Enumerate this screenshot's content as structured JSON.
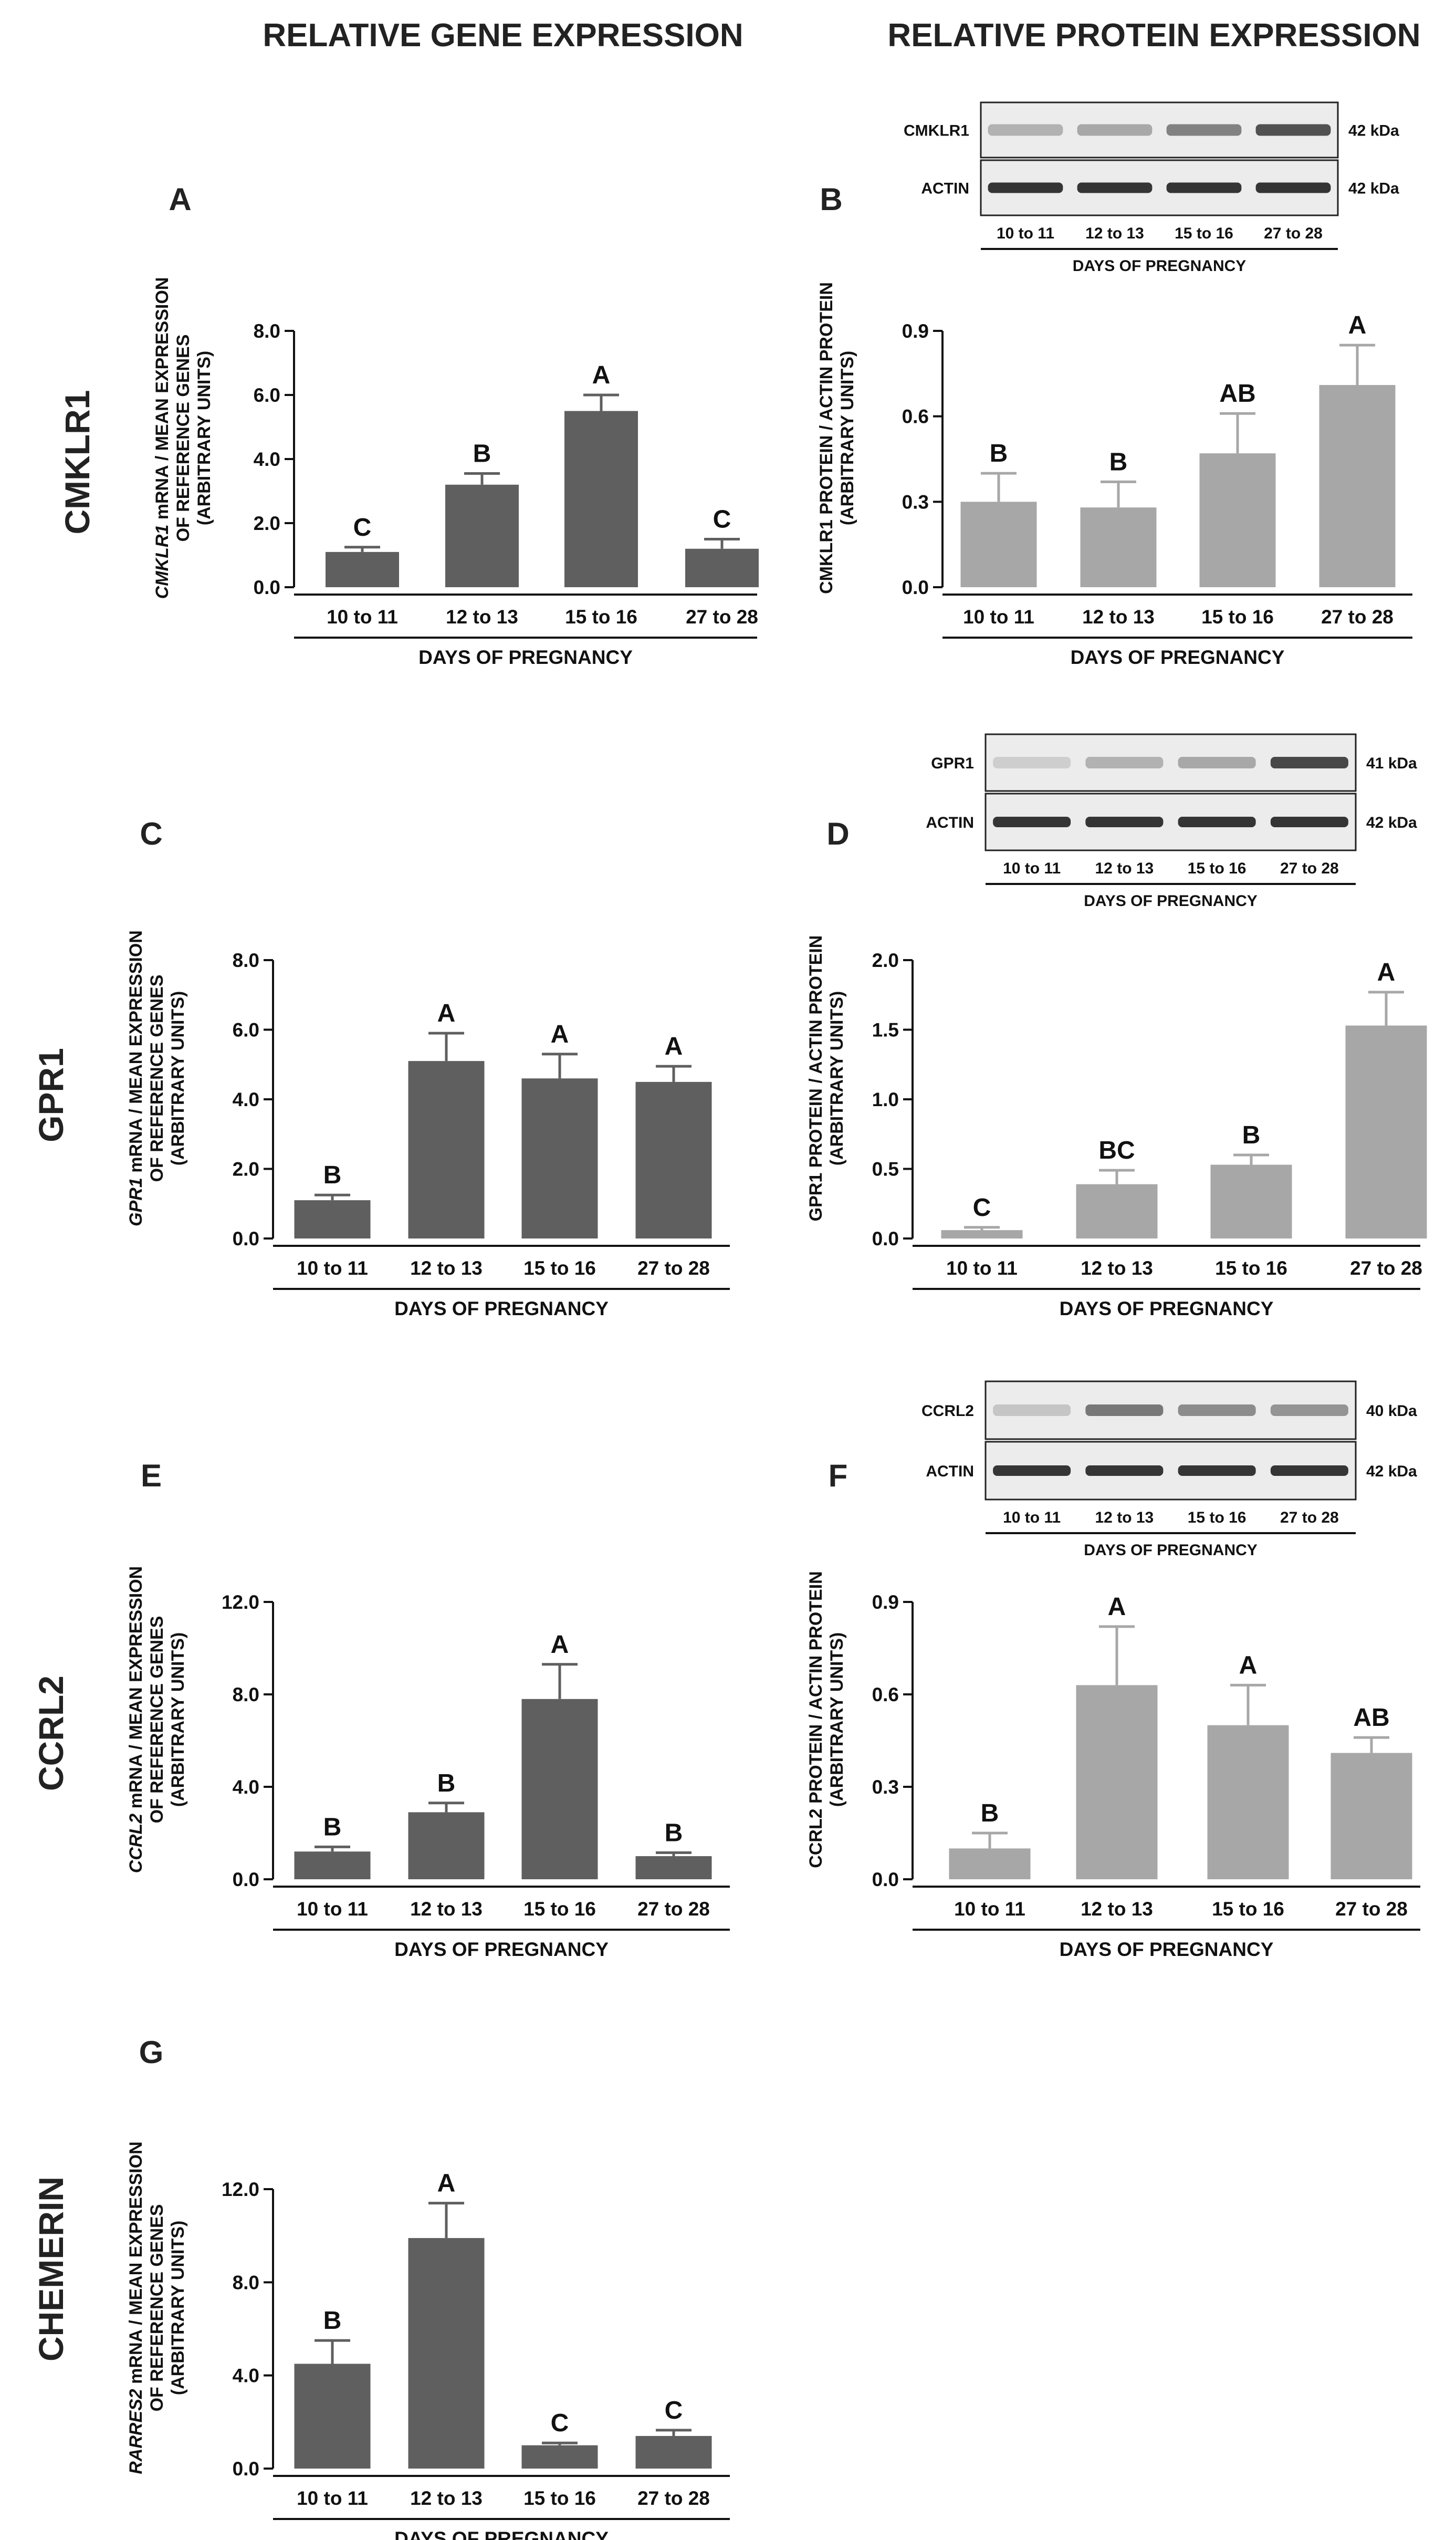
{
  "column_titles": [
    "RELATIVE GENE EXPRESSION",
    "RELATIVE PROTEIN EXPRESSION"
  ],
  "row_labels": [
    "CMKLR1",
    "GPR1",
    "CCRL2",
    "CHEMERIN"
  ],
  "colors": {
    "gene_bar": "#5f5f5f",
    "protein_bar": "#a7a7a7",
    "axis": "#111111",
    "blot_band": "#2b2b2b"
  },
  "chart_data": [
    {
      "panel": "A",
      "type": "bar",
      "measure": "gene",
      "categories": [
        "10 to 11",
        "12 to 13",
        "15 to 16",
        "27 to 28"
      ],
      "values": [
        1.1,
        3.2,
        5.5,
        1.2
      ],
      "errors": [
        0.15,
        0.35,
        0.5,
        0.3
      ],
      "significance": [
        "C",
        "B",
        "A",
        "C"
      ],
      "xlabel": "DAYS OF PREGNANCY",
      "ylabel_italic": "CMKLR1",
      "ylabel": [
        " mRNA / MEAN EXPRESSION",
        "OF REFERENCE GENES",
        "(ARBITRARY UNITS)"
      ],
      "ylim": [
        0,
        8
      ],
      "yticks": [
        "0.0",
        "2.0",
        "4.0",
        "6.0",
        "8.0"
      ]
    },
    {
      "panel": "B",
      "type": "bar",
      "measure": "protein",
      "categories": [
        "10 to 11",
        "12 to 13",
        "15 to 16",
        "27 to 28"
      ],
      "values": [
        0.3,
        0.28,
        0.47,
        0.71
      ],
      "errors": [
        0.1,
        0.09,
        0.14,
        0.14
      ],
      "significance": [
        "B",
        "B",
        "AB",
        "A"
      ],
      "xlabel": "DAYS OF PREGNANCY",
      "ylabel": [
        "CMKLR1 PROTEIN / ACTIN PROTEIN",
        "(ARBITRARY UNITS)"
      ],
      "ylim": [
        0,
        0.9
      ],
      "yticks": [
        "0.0",
        "0.3",
        "0.6",
        "0.9"
      ],
      "blot": {
        "target": "CMKLR1",
        "target_kda": "42 kDa",
        "control": "ACTIN",
        "control_kda": "42 kDa",
        "lanes": [
          "10 to 11",
          "12 to 13",
          "15 to 16",
          "27 to 28"
        ],
        "xlabel": "DAYS OF PREGNANCY",
        "target_intensity": [
          0.3,
          0.35,
          0.55,
          0.8
        ],
        "control_intensity": [
          0.95,
          0.95,
          0.95,
          0.95
        ]
      }
    },
    {
      "panel": "C",
      "type": "bar",
      "measure": "gene",
      "categories": [
        "10 to 11",
        "12 to 13",
        "15 to 16",
        "27 to 28"
      ],
      "values": [
        1.1,
        5.1,
        4.6,
        4.5
      ],
      "errors": [
        0.15,
        0.8,
        0.7,
        0.45
      ],
      "significance": [
        "B",
        "A",
        "A",
        "A"
      ],
      "xlabel": "DAYS OF PREGNANCY",
      "ylabel_italic": "GPR1",
      "ylabel": [
        " mRNA / MEAN EXPRESSION",
        "OF REFERENCE GENES",
        "(ARBITRARY UNITS)"
      ],
      "ylim": [
        0,
        8
      ],
      "yticks": [
        "0.0",
        "2.0",
        "4.0",
        "6.0",
        "8.0"
      ]
    },
    {
      "panel": "D",
      "type": "bar",
      "measure": "protein",
      "categories": [
        "10 to 11",
        "12 to 13",
        "15 to 16",
        "27 to 28"
      ],
      "values": [
        0.06,
        0.39,
        0.53,
        1.53
      ],
      "errors": [
        0.02,
        0.1,
        0.07,
        0.24
      ],
      "significance": [
        "C",
        "BC",
        "B",
        "A"
      ],
      "xlabel": "DAYS OF PREGNANCY",
      "ylabel": [
        "GPR1 PROTEIN / ACTIN PROTEIN",
        "(ARBITRARY UNITS)"
      ],
      "ylim": [
        0,
        2
      ],
      "yticks": [
        "0.0",
        "0.5",
        "1.0",
        "1.5",
        "2.0"
      ],
      "blot": {
        "target": "GPR1",
        "target_kda": "41 kDa",
        "control": "ACTIN",
        "control_kda": "42 kDa",
        "lanes": [
          "10 to 11",
          "12 to 13",
          "15 to 16",
          "27 to 28"
        ],
        "xlabel": "DAYS OF PREGNANCY",
        "target_intensity": [
          0.15,
          0.3,
          0.35,
          0.85
        ],
        "control_intensity": [
          0.95,
          0.95,
          0.95,
          0.95
        ]
      }
    },
    {
      "panel": "E",
      "type": "bar",
      "measure": "gene",
      "categories": [
        "10 to 11",
        "12 to 13",
        "15 to 16",
        "27 to 28"
      ],
      "values": [
        1.2,
        2.9,
        7.8,
        1.0
      ],
      "errors": [
        0.2,
        0.4,
        1.5,
        0.15
      ],
      "significance": [
        "B",
        "B",
        "A",
        "B"
      ],
      "xlabel": "DAYS OF PREGNANCY",
      "ylabel_italic": "CCRL2",
      "ylabel": [
        " mRNA / MEAN EXPRESSION",
        "OF REFERENCE GENES",
        "(ARBITRARY UNITS)"
      ],
      "ylim": [
        0,
        12
      ],
      "yticks": [
        "0.0",
        "4.0",
        "8.0",
        "12.0"
      ]
    },
    {
      "panel": "F",
      "type": "bar",
      "measure": "protein",
      "categories": [
        "10 to 11",
        "12 to 13",
        "15 to 16",
        "27 to 28"
      ],
      "values": [
        0.1,
        0.63,
        0.5,
        0.41
      ],
      "errors": [
        0.05,
        0.19,
        0.13,
        0.05
      ],
      "significance": [
        "B",
        "A",
        "A",
        "AB"
      ],
      "xlabel": "DAYS OF PREGNANCY",
      "ylabel": [
        "CCRL2 PROTEIN / ACTIN PROTEIN",
        "(ARBITRARY UNITS)"
      ],
      "ylim": [
        0,
        0.9
      ],
      "yticks": [
        "0.0",
        "0.3",
        "0.6",
        "0.9"
      ],
      "blot": {
        "target": "CCRL2",
        "target_kda": "40 kDa",
        "control": "ACTIN",
        "control_kda": "42 kDa",
        "lanes": [
          "10 to 11",
          "12 to 13",
          "15 to 16",
          "27 to 28"
        ],
        "xlabel": "DAYS OF PREGNANCY",
        "target_intensity": [
          0.2,
          0.6,
          0.5,
          0.45
        ],
        "control_intensity": [
          0.95,
          0.95,
          0.95,
          0.95
        ]
      }
    },
    {
      "panel": "G",
      "type": "bar",
      "measure": "gene",
      "categories": [
        "10 to 11",
        "12 to 13",
        "15 to 16",
        "27 to 28"
      ],
      "values": [
        4.5,
        9.9,
        1.0,
        1.4
      ],
      "errors": [
        1.0,
        1.5,
        0.1,
        0.25
      ],
      "significance": [
        "B",
        "A",
        "C",
        "C"
      ],
      "xlabel": "DAYS OF PREGNANCY",
      "ylabel_italic": "RARRES2",
      "ylabel": [
        " mRNA / MEAN EXPRESSION",
        "OF REFERENCE GENES",
        "(ARBITRARY UNITS)"
      ],
      "ylim": [
        0,
        12
      ],
      "yticks": [
        "0.0",
        "4.0",
        "8.0",
        "12.0"
      ]
    }
  ]
}
